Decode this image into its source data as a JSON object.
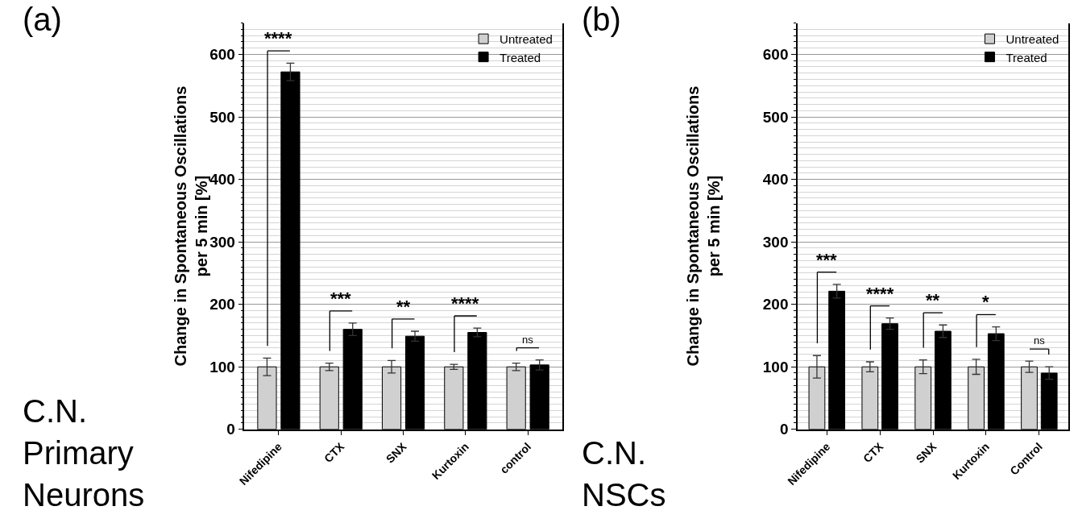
{
  "chart_data": [
    {
      "type": "bar",
      "title": "(a)",
      "subtitle": "C.N.\nPrimary\nNeurons",
      "ylabel": "Change in Spontaneous Oscillations\nper 5 min [%]",
      "categories": [
        "Nifedipine",
        "CTX",
        "SNX",
        "Kurtoxin",
        "control"
      ],
      "series": [
        {
          "name": "Untreated",
          "color": "#d0d0d0",
          "values": [
            100,
            100,
            100,
            100,
            100
          ],
          "errors": [
            14,
            6,
            10,
            4,
            6
          ]
        },
        {
          "name": "Treated",
          "color": "#000000",
          "values": [
            572,
            160,
            149,
            155,
            103
          ],
          "errors": [
            14,
            10,
            8,
            7,
            8
          ]
        }
      ],
      "ylim": [
        0,
        650
      ],
      "yticks": [
        0,
        100,
        200,
        300,
        400,
        500,
        600
      ],
      "grid": "y",
      "legend": "top right",
      "annotations": [
        "****",
        "***",
        "**",
        "****",
        "ns"
      ]
    },
    {
      "type": "bar",
      "title": "(b)",
      "subtitle": "C.N.\nNSCs",
      "ylabel": "Change in Spontaneous Oscillations\nper 5 min [%]",
      "categories": [
        "Nifedipine",
        "CTX",
        "SNX",
        "Kurtoxin",
        "Control"
      ],
      "series": [
        {
          "name": "Untreated",
          "color": "#d0d0d0",
          "values": [
            100,
            100,
            100,
            100,
            100
          ],
          "errors": [
            18,
            8,
            11,
            12,
            9
          ]
        },
        {
          "name": "Treated",
          "color": "#000000",
          "values": [
            221,
            169,
            157,
            153,
            90
          ],
          "errors": [
            11,
            9,
            10,
            11,
            10
          ]
        }
      ],
      "ylim": [
        0,
        650
      ],
      "yticks": [
        0,
        100,
        200,
        300,
        400,
        500,
        600
      ],
      "grid": "y",
      "legend": "top right",
      "annotations": [
        "***",
        "****",
        "**",
        "*",
        "ns"
      ]
    }
  ]
}
